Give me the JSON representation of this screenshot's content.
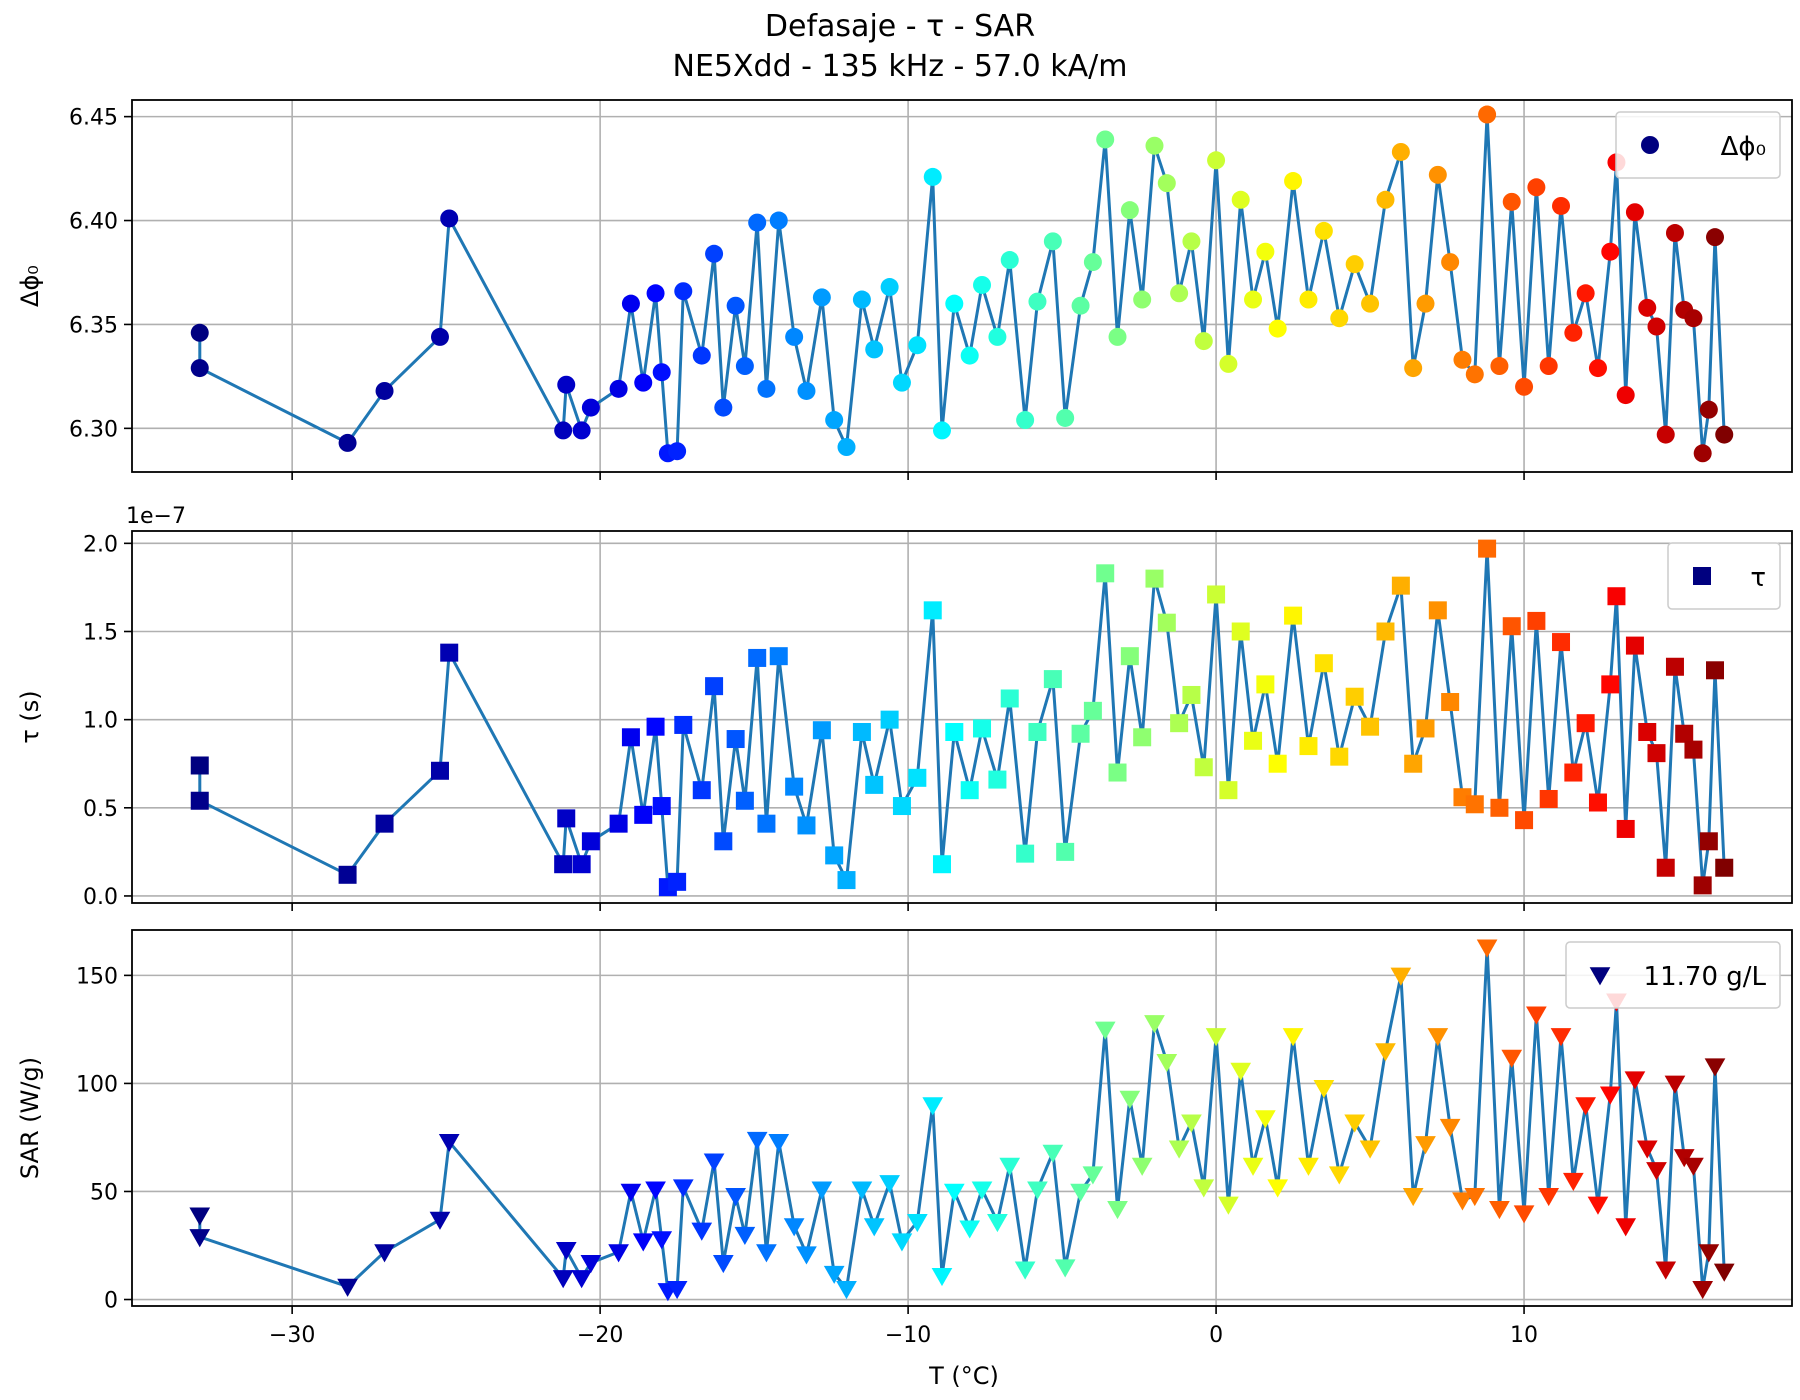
{
  "figure": {
    "title_line1": "Defasaje - τ - SAR",
    "title_line2": "NE5Xdd - 135 kHz - 57.0 kA/m",
    "xlabel": "T (°C)",
    "line_color": "#1f77b4",
    "colormap": "jet",
    "grid": true
  },
  "chart_data": [
    {
      "type": "scatter",
      "title": "",
      "ylabel": "Δϕ₀",
      "xlim": [
        -35.2,
        18.7
      ],
      "ylim": [
        6.279,
        6.458
      ],
      "xticks": [
        -30,
        -20,
        -10,
        0,
        10
      ],
      "xtick_labels": [],
      "yticks": [
        6.3,
        6.35,
        6.4,
        6.45
      ],
      "ytick_labels": [
        "6.30",
        "6.35",
        "6.40",
        "6.45"
      ],
      "offset_text": "",
      "legend": {
        "label": "Δϕ₀",
        "marker": "circle",
        "position": "top-right"
      },
      "marker": "circle",
      "series": [
        {
          "x": [
            -33.0,
            -33.0,
            -28.2,
            -27.0,
            -25.2,
            -24.9,
            -21.2,
            -21.1,
            -20.6,
            -20.3,
            -19.4,
            -19.0,
            -18.6,
            -18.2,
            -18.0,
            -17.8,
            -17.5,
            -17.3,
            -16.7,
            -16.3,
            -16.0,
            -15.6,
            -15.3,
            -14.9,
            -14.6,
            -14.2,
            -13.7,
            -13.3,
            -12.8,
            -12.4,
            -12.0,
            -11.5,
            -11.1,
            -10.6,
            -10.2,
            -9.7,
            -9.2,
            -8.9,
            -8.5,
            -8.0,
            -7.6,
            -7.1,
            -6.7,
            -6.2,
            -5.8,
            -5.3,
            -4.9,
            -4.4,
            -4.0,
            -3.6,
            -3.2,
            -2.8,
            -2.4,
            -2.0,
            -1.6,
            -1.2,
            -0.8,
            -0.4,
            0.0,
            0.4,
            0.8,
            1.2,
            1.6,
            2.0,
            2.5,
            3.0,
            3.5,
            4.0,
            4.5,
            5.0,
            5.5,
            6.0,
            6.4,
            6.8,
            7.2,
            7.6,
            8.0,
            8.4,
            8.8,
            9.2,
            9.6,
            10.0,
            10.4,
            10.8,
            11.2,
            11.6,
            12.0,
            12.4,
            12.8,
            13.0,
            13.3,
            13.6,
            14.0,
            14.3,
            14.6,
            14.9,
            15.2,
            15.5,
            15.8,
            16.0,
            16.2,
            16.5
          ],
          "y": [
            6.346,
            6.329,
            6.293,
            6.318,
            6.344,
            6.401,
            6.299,
            6.321,
            6.299,
            6.31,
            6.319,
            6.36,
            6.322,
            6.365,
            6.327,
            6.288,
            6.289,
            6.366,
            6.335,
            6.384,
            6.31,
            6.359,
            6.33,
            6.399,
            6.319,
            6.4,
            6.344,
            6.318,
            6.363,
            6.304,
            6.291,
            6.362,
            6.338,
            6.368,
            6.322,
            6.34,
            6.421,
            6.299,
            6.36,
            6.335,
            6.369,
            6.344,
            6.381,
            6.304,
            6.361,
            6.39,
            6.305,
            6.359,
            6.38,
            6.439,
            6.344,
            6.405,
            6.362,
            6.436,
            6.418,
            6.365,
            6.39,
            6.342,
            6.429,
            6.331,
            6.41,
            6.362,
            6.385,
            6.348,
            6.419,
            6.362,
            6.395,
            6.353,
            6.379,
            6.36,
            6.41,
            6.433,
            6.329,
            6.36,
            6.422,
            6.38,
            6.333,
            6.326,
            6.451,
            6.33,
            6.409,
            6.32,
            6.416,
            6.33,
            6.407,
            6.346,
            6.365,
            6.329,
            6.385,
            6.428,
            6.316,
            6.404,
            6.358,
            6.349,
            6.297,
            6.394,
            6.357,
            6.353,
            6.288,
            6.309,
            6.392,
            6.297
          ]
        }
      ]
    },
    {
      "type": "scatter",
      "title": "",
      "ylabel": "τ (s)",
      "xlim": [
        -35.2,
        18.7
      ],
      "ylim": [
        -4e-09,
        2.07e-07
      ],
      "xticks": [
        -30,
        -20,
        -10,
        0,
        10
      ],
      "xtick_labels": [],
      "yticks": [
        0.0,
        5e-08,
        1e-07,
        1.5e-07,
        2e-07
      ],
      "ytick_labels": [
        "0.0",
        "0.5",
        "1.0",
        "1.5",
        "2.0"
      ],
      "offset_text": "1e−7",
      "legend": {
        "label": "τ",
        "marker": "square",
        "position": "top-right"
      },
      "marker": "square",
      "series": [
        {
          "x": [
            -33.0,
            -33.0,
            -28.2,
            -27.0,
            -25.2,
            -24.9,
            -21.2,
            -21.1,
            -20.6,
            -20.3,
            -19.4,
            -19.0,
            -18.6,
            -18.2,
            -18.0,
            -17.8,
            -17.5,
            -17.3,
            -16.7,
            -16.3,
            -16.0,
            -15.6,
            -15.3,
            -14.9,
            -14.6,
            -14.2,
            -13.7,
            -13.3,
            -12.8,
            -12.4,
            -12.0,
            -11.5,
            -11.1,
            -10.6,
            -10.2,
            -9.7,
            -9.2,
            -8.9,
            -8.5,
            -8.0,
            -7.6,
            -7.1,
            -6.7,
            -6.2,
            -5.8,
            -5.3,
            -4.9,
            -4.4,
            -4.0,
            -3.6,
            -3.2,
            -2.8,
            -2.4,
            -2.0,
            -1.6,
            -1.2,
            -0.8,
            -0.4,
            0.0,
            0.4,
            0.8,
            1.2,
            1.6,
            2.0,
            2.5,
            3.0,
            3.5,
            4.0,
            4.5,
            5.0,
            5.5,
            6.0,
            6.4,
            6.8,
            7.2,
            7.6,
            8.0,
            8.4,
            8.8,
            9.2,
            9.6,
            10.0,
            10.4,
            10.8,
            11.2,
            11.6,
            12.0,
            12.4,
            12.8,
            13.0,
            13.3,
            13.6,
            14.0,
            14.3,
            14.6,
            14.9,
            15.2,
            15.5,
            15.8,
            16.0,
            16.2,
            16.5
          ],
          "y": [
            7.4e-08,
            5.4e-08,
            1.2e-08,
            4.1e-08,
            7.1e-08,
            1.38e-07,
            1.8e-08,
            4.4e-08,
            1.8e-08,
            3.1e-08,
            4.1e-08,
            9e-08,
            4.6e-08,
            9.6e-08,
            5.1e-08,
            5e-09,
            8e-09,
            9.7e-08,
            6e-08,
            1.19e-07,
            3.1e-08,
            8.9e-08,
            5.4e-08,
            1.35e-07,
            4.1e-08,
            1.36e-07,
            6.2e-08,
            4e-08,
            9.4e-08,
            2.3e-08,
            9e-09,
            9.3e-08,
            6.3e-08,
            1e-07,
            5.1e-08,
            6.7e-08,
            1.62e-07,
            1.8e-08,
            9.3e-08,
            6e-08,
            9.5e-08,
            6.6e-08,
            1.12e-07,
            2.4e-08,
            9.3e-08,
            1.23e-07,
            2.5e-08,
            9.2e-08,
            1.05e-07,
            1.83e-07,
            7e-08,
            1.36e-07,
            9e-08,
            1.8e-07,
            1.55e-07,
            9.8e-08,
            1.14e-07,
            7.3e-08,
            1.71e-07,
            6e-08,
            1.5e-07,
            8.8e-08,
            1.2e-07,
            7.5e-08,
            1.59e-07,
            8.5e-08,
            1.32e-07,
            7.9e-08,
            1.13e-07,
            9.6e-08,
            1.5e-07,
            1.76e-07,
            7.5e-08,
            9.5e-08,
            1.62e-07,
            1.1e-07,
            5.6e-08,
            5.2e-08,
            1.97e-07,
            5e-08,
            1.53e-07,
            4.3e-08,
            1.56e-07,
            5.5e-08,
            1.44e-07,
            7e-08,
            9.8e-08,
            5.3e-08,
            1.2e-07,
            1.7e-07,
            3.8e-08,
            1.42e-07,
            9.3e-08,
            8.1e-08,
            1.6e-08,
            1.3e-07,
            9.2e-08,
            8.3e-08,
            6e-09,
            3.1e-08,
            1.28e-07,
            1.6e-08
          ]
        }
      ]
    },
    {
      "type": "scatter",
      "title": "",
      "ylabel": "SAR (W/g)",
      "xlim": [
        -35.2,
        18.7
      ],
      "ylim": [
        -3,
        171
      ],
      "xticks": [
        -30,
        -20,
        -10,
        0,
        10
      ],
      "xtick_labels": [
        "−30",
        "−20",
        "−10",
        "0",
        "10"
      ],
      "yticks": [
        0,
        50,
        100,
        150
      ],
      "ytick_labels": [
        "0",
        "50",
        "100",
        "150"
      ],
      "offset_text": "",
      "legend": {
        "label": "11.70 g/L",
        "marker": "triangle-down",
        "position": "top-right"
      },
      "marker": "triangle-down",
      "series": [
        {
          "x": [
            -33.0,
            -33.0,
            -28.2,
            -27.0,
            -25.2,
            -24.9,
            -21.2,
            -21.1,
            -20.6,
            -20.3,
            -19.4,
            -19.0,
            -18.6,
            -18.2,
            -18.0,
            -17.8,
            -17.5,
            -17.3,
            -16.7,
            -16.3,
            -16.0,
            -15.6,
            -15.3,
            -14.9,
            -14.6,
            -14.2,
            -13.7,
            -13.3,
            -12.8,
            -12.4,
            -12.0,
            -11.5,
            -11.1,
            -10.6,
            -10.2,
            -9.7,
            -9.2,
            -8.9,
            -8.5,
            -8.0,
            -7.6,
            -7.1,
            -6.7,
            -6.2,
            -5.8,
            -5.3,
            -4.9,
            -4.4,
            -4.0,
            -3.6,
            -3.2,
            -2.8,
            -2.4,
            -2.0,
            -1.6,
            -1.2,
            -0.8,
            -0.4,
            0.0,
            0.4,
            0.8,
            1.2,
            1.6,
            2.0,
            2.5,
            3.0,
            3.5,
            4.0,
            4.5,
            5.0,
            5.5,
            6.0,
            6.4,
            6.8,
            7.2,
            7.6,
            8.0,
            8.4,
            8.8,
            9.2,
            9.6,
            10.0,
            10.4,
            10.8,
            11.2,
            11.6,
            12.0,
            12.4,
            12.8,
            13.0,
            13.3,
            13.6,
            14.0,
            14.3,
            14.6,
            14.9,
            15.2,
            15.5,
            15.8,
            16.0,
            16.2,
            16.5
          ],
          "y": [
            39,
            29,
            6,
            22,
            37,
            73,
            10,
            23,
            10,
            17,
            22,
            50,
            27,
            51,
            28,
            4,
            5,
            52,
            32,
            64,
            17,
            48,
            30,
            74,
            22,
            73,
            34,
            21,
            51,
            12,
            5,
            51,
            34,
            54,
            27,
            36,
            90,
            11,
            50,
            33,
            51,
            36,
            62,
            14,
            51,
            68,
            15,
            50,
            58,
            125,
            42,
            93,
            62,
            128,
            110,
            70,
            82,
            52,
            122,
            44,
            106,
            62,
            84,
            52,
            122,
            62,
            98,
            58,
            82,
            70,
            115,
            150,
            48,
            72,
            122,
            80,
            46,
            48,
            163,
            42,
            112,
            40,
            132,
            48,
            122,
            55,
            90,
            44,
            95,
            138,
            34,
            102,
            70,
            60,
            14,
            100,
            66,
            62,
            5,
            22,
            108,
            13
          ]
        }
      ]
    }
  ]
}
